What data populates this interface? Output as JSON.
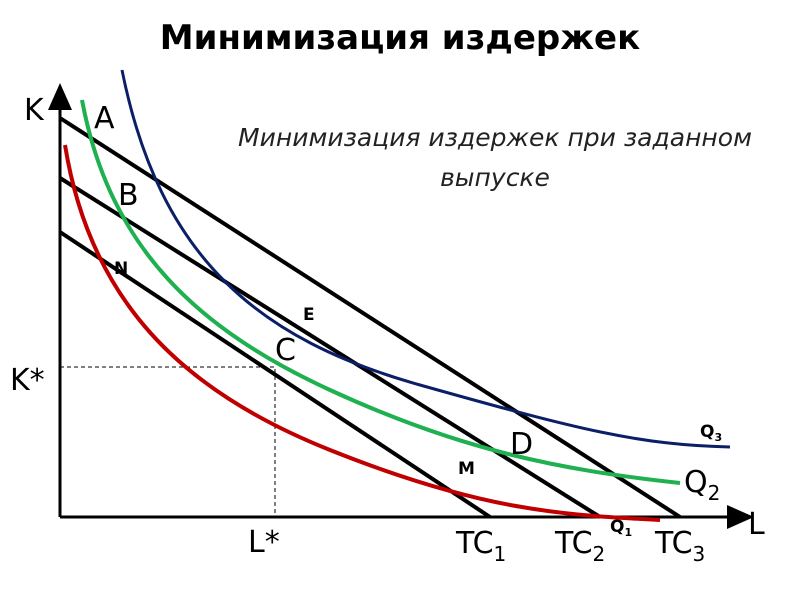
{
  "title": "Минимизация издержек",
  "subtitle": "Минимизация издержек при заданном выпуске",
  "axes": {
    "y": "K",
    "x": "L",
    "y_star": "K*",
    "x_star": "L*"
  },
  "points": [
    "A",
    "B",
    "N",
    "E",
    "C",
    "D",
    "M"
  ],
  "isoquants": [
    {
      "name": "Q",
      "sub": "1"
    },
    {
      "name": "Q",
      "sub": "2"
    },
    {
      "name": "Q",
      "sub": "3"
    }
  ],
  "isocosts": [
    {
      "name": "TC",
      "sub": "1"
    },
    {
      "name": "TC",
      "sub": "2"
    },
    {
      "name": "TC",
      "sub": "3"
    }
  ]
}
